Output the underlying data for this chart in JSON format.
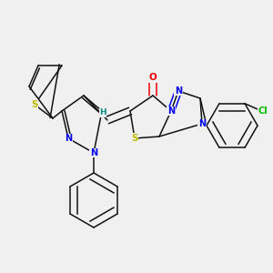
{
  "bg_color": "#f0f0f0",
  "atom_colors": {
    "N": "#0000ee",
    "O": "#ee0000",
    "S": "#bbbb00",
    "Cl": "#00bb00",
    "C": "#111111",
    "H": "#008b8b"
  }
}
